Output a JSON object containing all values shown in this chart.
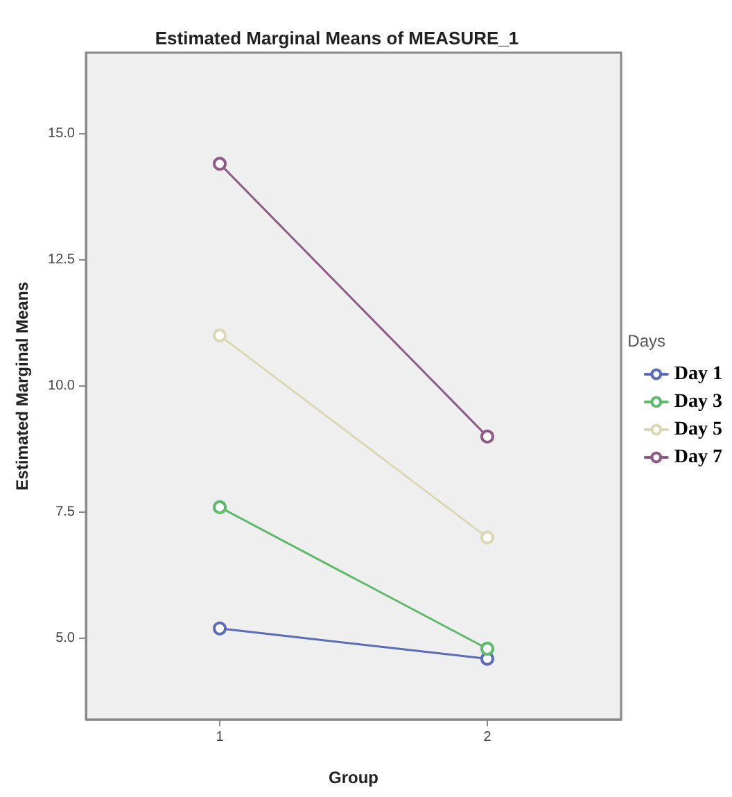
{
  "chart_data": {
    "type": "line",
    "title": "Estimated Marginal Means of MEASURE_1",
    "xlabel": "Group",
    "ylabel": "Estimated Marginal Means",
    "legend_title": "Days",
    "categories": [
      "1",
      "2"
    ],
    "series": [
      {
        "name": "Day 1",
        "color": "#5a6cb8",
        "values": [
          5.2,
          4.6
        ]
      },
      {
        "name": "Day 3",
        "color": "#5cba6a",
        "values": [
          7.6,
          4.8
        ]
      },
      {
        "name": "Day 5",
        "color": "#dcd7b4",
        "values": [
          11.0,
          7.0
        ]
      },
      {
        "name": "Day 7",
        "color": "#8e5b86",
        "values": [
          14.4,
          9.0
        ]
      }
    ],
    "ylim": [
      3.4,
      16.6
    ],
    "yticks": [
      {
        "value": 5,
        "label": "5.0"
      },
      {
        "value": 7.5,
        "label": "7.5"
      },
      {
        "value": 10,
        "label": "10.0"
      },
      {
        "value": 12.5,
        "label": "12.5"
      },
      {
        "value": 15,
        "label": "15.0"
      }
    ],
    "grid": false,
    "legend": "right",
    "marker": "circle",
    "line_style": "solid"
  }
}
